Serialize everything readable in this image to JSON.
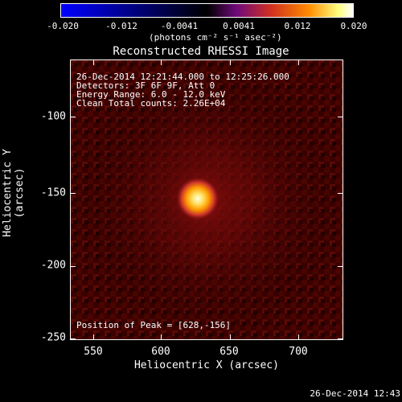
{
  "colorbar": {
    "ticks": [
      "-0.020",
      "-0.012",
      "-0.0041",
      "0.0041",
      "0.012",
      "0.020"
    ],
    "units_label": "(photons cm⁻² s⁻¹ asec⁻²)",
    "colors": [
      "#0000ff",
      "#000000",
      "#7a0a6a",
      "#c8302a",
      "#ff9a00",
      "#ffffd0"
    ]
  },
  "plot": {
    "title": "Reconstructed RHESSI Image",
    "xlabel": "Heliocentric X (arcsec)",
    "ylabel": "Heliocentric Y (arcsec)",
    "xticks": [
      "550",
      "600",
      "650",
      "700"
    ],
    "yticks": [
      "-100",
      "-150",
      "-200",
      "-250"
    ],
    "info": [
      "26-Dec-2014 12:21:44.000 to 12:25:26.000",
      "Detectors: 3F 6F 9F, Att 0",
      "Energy Range: 6.0 - 12.0 keV",
      "Clean     Total counts: 2.26E+04"
    ],
    "peak_text": "Position of Peak = [628,-156]"
  },
  "footer": {
    "timestamp": "26-Dec-2014 12:43"
  }
}
